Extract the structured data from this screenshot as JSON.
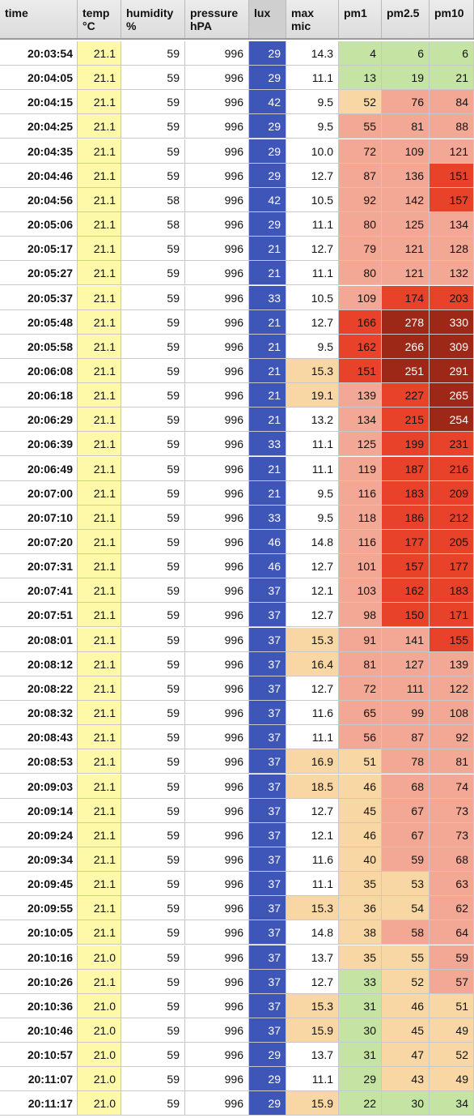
{
  "columns": [
    {
      "key": "time",
      "label": "time"
    },
    {
      "key": "temp",
      "label": "temp\n°C"
    },
    {
      "key": "humidity",
      "label": "humidity\n%"
    },
    {
      "key": "pressure",
      "label": "pressure\nhPA"
    },
    {
      "key": "lux",
      "label": "lux"
    },
    {
      "key": "maxmic",
      "label": "max\nmic"
    },
    {
      "key": "pm1",
      "label": "pm1"
    },
    {
      "key": "pm25",
      "label": "pm2.5"
    },
    {
      "key": "pm10",
      "label": "pm10"
    }
  ],
  "colors": {
    "temp_fill": "#fdf9a9",
    "lux_fill": "#3e56b8",
    "good": "#c5e3a2",
    "moderate": "#f8d7a4",
    "elevated": "#f2a894",
    "high": "#e8432a",
    "very_high": "#9e2818"
  },
  "rows": [
    [
      "20:03:54",
      "21.1",
      "59",
      "996",
      "29",
      "14.3",
      "4",
      "6",
      "6"
    ],
    [
      "20:04:05",
      "21.1",
      "59",
      "996",
      "29",
      "11.1",
      "13",
      "19",
      "21"
    ],
    [
      "20:04:15",
      "21.1",
      "59",
      "996",
      "42",
      "9.5",
      "52",
      "76",
      "84"
    ],
    [
      "20:04:25",
      "21.1",
      "59",
      "996",
      "29",
      "9.5",
      "55",
      "81",
      "88"
    ],
    [
      "20:04:35",
      "21.1",
      "59",
      "996",
      "29",
      "10.0",
      "72",
      "109",
      "121"
    ],
    [
      "20:04:46",
      "21.1",
      "59",
      "996",
      "29",
      "12.7",
      "87",
      "136",
      "151"
    ],
    [
      "20:04:56",
      "21.1",
      "58",
      "996",
      "42",
      "10.5",
      "92",
      "142",
      "157"
    ],
    [
      "20:05:06",
      "21.1",
      "58",
      "996",
      "29",
      "11.1",
      "80",
      "125",
      "134"
    ],
    [
      "20:05:17",
      "21.1",
      "59",
      "996",
      "21",
      "12.7",
      "79",
      "121",
      "128"
    ],
    [
      "20:05:27",
      "21.1",
      "59",
      "996",
      "21",
      "11.1",
      "80",
      "121",
      "132"
    ],
    [
      "20:05:37",
      "21.1",
      "59",
      "996",
      "33",
      "10.5",
      "109",
      "174",
      "203"
    ],
    [
      "20:05:48",
      "21.1",
      "59",
      "996",
      "21",
      "12.7",
      "166",
      "278",
      "330"
    ],
    [
      "20:05:58",
      "21.1",
      "59",
      "996",
      "21",
      "9.5",
      "162",
      "266",
      "309"
    ],
    [
      "20:06:08",
      "21.1",
      "59",
      "996",
      "21",
      "15.3",
      "151",
      "251",
      "291"
    ],
    [
      "20:06:18",
      "21.1",
      "59",
      "996",
      "21",
      "19.1",
      "139",
      "227",
      "265"
    ],
    [
      "20:06:29",
      "21.1",
      "59",
      "996",
      "21",
      "13.2",
      "134",
      "215",
      "254"
    ],
    [
      "20:06:39",
      "21.1",
      "59",
      "996",
      "33",
      "11.1",
      "125",
      "199",
      "231"
    ],
    [
      "20:06:49",
      "21.1",
      "59",
      "996",
      "21",
      "11.1",
      "119",
      "187",
      "216"
    ],
    [
      "20:07:00",
      "21.1",
      "59",
      "996",
      "21",
      "9.5",
      "116",
      "183",
      "209"
    ],
    [
      "20:07:10",
      "21.1",
      "59",
      "996",
      "33",
      "9.5",
      "118",
      "186",
      "212"
    ],
    [
      "20:07:20",
      "21.1",
      "59",
      "996",
      "46",
      "14.8",
      "116",
      "177",
      "205"
    ],
    [
      "20:07:31",
      "21.1",
      "59",
      "996",
      "46",
      "12.7",
      "101",
      "157",
      "177"
    ],
    [
      "20:07:41",
      "21.1",
      "59",
      "996",
      "37",
      "12.1",
      "103",
      "162",
      "183"
    ],
    [
      "20:07:51",
      "21.1",
      "59",
      "996",
      "37",
      "12.7",
      "98",
      "150",
      "171"
    ],
    [
      "20:08:01",
      "21.1",
      "59",
      "996",
      "37",
      "15.3",
      "91",
      "141",
      "155"
    ],
    [
      "20:08:12",
      "21.1",
      "59",
      "996",
      "37",
      "16.4",
      "81",
      "127",
      "139"
    ],
    [
      "20:08:22",
      "21.1",
      "59",
      "996",
      "37",
      "12.7",
      "72",
      "111",
      "122"
    ],
    [
      "20:08:32",
      "21.1",
      "59",
      "996",
      "37",
      "11.6",
      "65",
      "99",
      "108"
    ],
    [
      "20:08:43",
      "21.1",
      "59",
      "996",
      "37",
      "11.1",
      "56",
      "87",
      "92"
    ],
    [
      "20:08:53",
      "21.1",
      "59",
      "996",
      "37",
      "16.9",
      "51",
      "78",
      "81"
    ],
    [
      "20:09:03",
      "21.1",
      "59",
      "996",
      "37",
      "18.5",
      "46",
      "68",
      "74"
    ],
    [
      "20:09:14",
      "21.1",
      "59",
      "996",
      "37",
      "12.7",
      "45",
      "67",
      "73"
    ],
    [
      "20:09:24",
      "21.1",
      "59",
      "996",
      "37",
      "12.1",
      "46",
      "67",
      "73"
    ],
    [
      "20:09:34",
      "21.1",
      "59",
      "996",
      "37",
      "11.6",
      "40",
      "59",
      "68"
    ],
    [
      "20:09:45",
      "21.1",
      "59",
      "996",
      "37",
      "11.1",
      "35",
      "53",
      "63"
    ],
    [
      "20:09:55",
      "21.1",
      "59",
      "996",
      "37",
      "15.3",
      "36",
      "54",
      "62"
    ],
    [
      "20:10:05",
      "21.1",
      "59",
      "996",
      "37",
      "14.8",
      "38",
      "58",
      "64"
    ],
    [
      "20:10:16",
      "21.0",
      "59",
      "996",
      "37",
      "13.7",
      "35",
      "55",
      "59"
    ],
    [
      "20:10:26",
      "21.1",
      "59",
      "996",
      "37",
      "12.7",
      "33",
      "52",
      "57"
    ],
    [
      "20:10:36",
      "21.0",
      "59",
      "996",
      "37",
      "15.3",
      "31",
      "46",
      "51"
    ],
    [
      "20:10:46",
      "21.0",
      "59",
      "996",
      "37",
      "15.9",
      "30",
      "45",
      "49"
    ],
    [
      "20:10:57",
      "21.0",
      "59",
      "996",
      "29",
      "13.7",
      "31",
      "47",
      "52"
    ],
    [
      "20:11:07",
      "21.0",
      "59",
      "996",
      "29",
      "11.1",
      "29",
      "43",
      "49"
    ],
    [
      "20:11:17",
      "21.0",
      "59",
      "996",
      "29",
      "15.9",
      "22",
      "30",
      "34"
    ]
  ],
  "cell_levels": [
    {
      "maxmic": null,
      "pm1": "good",
      "pm25": "good",
      "pm10": "good"
    },
    {
      "maxmic": null,
      "pm1": "good",
      "pm25": "good",
      "pm10": "good"
    },
    {
      "maxmic": null,
      "pm1": "moderate",
      "pm25": "elevated",
      "pm10": "elevated"
    },
    {
      "maxmic": null,
      "pm1": "elevated",
      "pm25": "elevated",
      "pm10": "elevated"
    },
    {
      "maxmic": null,
      "pm1": "elevated",
      "pm25": "elevated",
      "pm10": "elevated"
    },
    {
      "maxmic": null,
      "pm1": "elevated",
      "pm25": "elevated",
      "pm10": "high"
    },
    {
      "maxmic": null,
      "pm1": "elevated",
      "pm25": "elevated",
      "pm10": "high"
    },
    {
      "maxmic": null,
      "pm1": "elevated",
      "pm25": "elevated",
      "pm10": "elevated"
    },
    {
      "maxmic": null,
      "pm1": "elevated",
      "pm25": "elevated",
      "pm10": "elevated"
    },
    {
      "maxmic": null,
      "pm1": "elevated",
      "pm25": "elevated",
      "pm10": "elevated"
    },
    {
      "maxmic": null,
      "pm1": "elevated",
      "pm25": "high",
      "pm10": "high"
    },
    {
      "maxmic": null,
      "pm1": "high",
      "pm25": "very_high",
      "pm10": "very_high"
    },
    {
      "maxmic": null,
      "pm1": "high",
      "pm25": "very_high",
      "pm10": "very_high"
    },
    {
      "maxmic": "moderate",
      "pm1": "high",
      "pm25": "very_high",
      "pm10": "very_high"
    },
    {
      "maxmic": "moderate",
      "pm1": "elevated",
      "pm25": "high",
      "pm10": "very_high"
    },
    {
      "maxmic": null,
      "pm1": "elevated",
      "pm25": "high",
      "pm10": "very_high"
    },
    {
      "maxmic": null,
      "pm1": "elevated",
      "pm25": "high",
      "pm10": "high"
    },
    {
      "maxmic": null,
      "pm1": "elevated",
      "pm25": "high",
      "pm10": "high"
    },
    {
      "maxmic": null,
      "pm1": "elevated",
      "pm25": "high",
      "pm10": "high"
    },
    {
      "maxmic": null,
      "pm1": "elevated",
      "pm25": "high",
      "pm10": "high"
    },
    {
      "maxmic": null,
      "pm1": "elevated",
      "pm25": "high",
      "pm10": "high"
    },
    {
      "maxmic": null,
      "pm1": "elevated",
      "pm25": "high",
      "pm10": "high"
    },
    {
      "maxmic": null,
      "pm1": "elevated",
      "pm25": "high",
      "pm10": "high"
    },
    {
      "maxmic": null,
      "pm1": "elevated",
      "pm25": "high",
      "pm10": "high"
    },
    {
      "maxmic": "moderate",
      "pm1": "elevated",
      "pm25": "elevated",
      "pm10": "high"
    },
    {
      "maxmic": "moderate",
      "pm1": "elevated",
      "pm25": "elevated",
      "pm10": "elevated"
    },
    {
      "maxmic": null,
      "pm1": "elevated",
      "pm25": "elevated",
      "pm10": "elevated"
    },
    {
      "maxmic": null,
      "pm1": "elevated",
      "pm25": "elevated",
      "pm10": "elevated"
    },
    {
      "maxmic": null,
      "pm1": "elevated",
      "pm25": "elevated",
      "pm10": "elevated"
    },
    {
      "maxmic": "moderate",
      "pm1": "moderate",
      "pm25": "elevated",
      "pm10": "elevated"
    },
    {
      "maxmic": "moderate",
      "pm1": "moderate",
      "pm25": "elevated",
      "pm10": "elevated"
    },
    {
      "maxmic": null,
      "pm1": "moderate",
      "pm25": "elevated",
      "pm10": "elevated"
    },
    {
      "maxmic": null,
      "pm1": "moderate",
      "pm25": "elevated",
      "pm10": "elevated"
    },
    {
      "maxmic": null,
      "pm1": "moderate",
      "pm25": "elevated",
      "pm10": "elevated"
    },
    {
      "maxmic": null,
      "pm1": "moderate",
      "pm25": "moderate",
      "pm10": "elevated"
    },
    {
      "maxmic": "moderate",
      "pm1": "moderate",
      "pm25": "moderate",
      "pm10": "elevated"
    },
    {
      "maxmic": null,
      "pm1": "moderate",
      "pm25": "elevated",
      "pm10": "elevated"
    },
    {
      "maxmic": null,
      "pm1": "moderate",
      "pm25": "moderate",
      "pm10": "elevated"
    },
    {
      "maxmic": null,
      "pm1": "good",
      "pm25": "moderate",
      "pm10": "elevated"
    },
    {
      "maxmic": "moderate",
      "pm1": "good",
      "pm25": "moderate",
      "pm10": "moderate"
    },
    {
      "maxmic": "moderate",
      "pm1": "good",
      "pm25": "moderate",
      "pm10": "moderate"
    },
    {
      "maxmic": null,
      "pm1": "good",
      "pm25": "moderate",
      "pm10": "moderate"
    },
    {
      "maxmic": null,
      "pm1": "good",
      "pm25": "moderate",
      "pm10": "moderate"
    },
    {
      "maxmic": "moderate",
      "pm1": "good",
      "pm25": "good",
      "pm10": "good"
    }
  ]
}
